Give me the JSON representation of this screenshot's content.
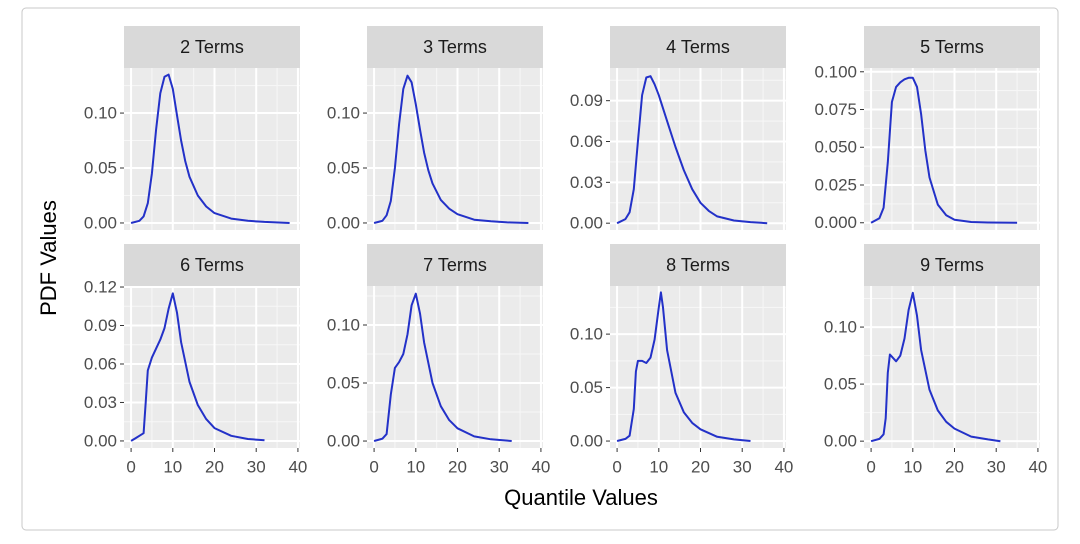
{
  "chart_data": {
    "type": "line",
    "xlabel": "Quantile Values",
    "ylabel": "PDF Values",
    "color": "#2331c8",
    "grid": true,
    "panels": [
      {
        "title": "2 Terms",
        "x": [
          0,
          2,
          3,
          4,
          5,
          6,
          7,
          8,
          9,
          10,
          11,
          12,
          13,
          14,
          16,
          18,
          20,
          24,
          28,
          32,
          38
        ],
        "values": [
          0,
          0.002,
          0.006,
          0.018,
          0.045,
          0.085,
          0.118,
          0.133,
          0.135,
          0.122,
          0.098,
          0.075,
          0.056,
          0.042,
          0.025,
          0.015,
          0.009,
          0.004,
          0.002,
          0.001,
          0
        ],
        "xlim": [
          -1.7,
          40.5
        ],
        "xticks": [
          0,
          10,
          20,
          30,
          40
        ],
        "ylim": [
          -0.0064,
          0.141
        ],
        "yticks": [
          {
            "value": 0,
            "label": "0.00"
          },
          {
            "value": 0.05,
            "label": "0.05"
          },
          {
            "value": 0.1,
            "label": "0.10"
          }
        ]
      },
      {
        "title": "3 Terms",
        "x": [
          0,
          2,
          3,
          4,
          5,
          6,
          7,
          8,
          9,
          10,
          11,
          12,
          13,
          14,
          16,
          18,
          20,
          24,
          28,
          32,
          37
        ],
        "values": [
          0,
          0.002,
          0.007,
          0.02,
          0.05,
          0.09,
          0.122,
          0.134,
          0.128,
          0.108,
          0.085,
          0.064,
          0.048,
          0.036,
          0.021,
          0.013,
          0.008,
          0.003,
          0.0015,
          0.0005,
          0
        ],
        "xlim": [
          -1.7,
          40.5
        ],
        "xticks": [
          0,
          10,
          20,
          30,
          40
        ],
        "ylim": [
          -0.0064,
          0.141
        ],
        "yticks": [
          {
            "value": 0,
            "label": "0.00"
          },
          {
            "value": 0.05,
            "label": "0.05"
          },
          {
            "value": 0.1,
            "label": "0.10"
          }
        ]
      },
      {
        "title": "4 Terms",
        "x": [
          0,
          2,
          3,
          4,
          5,
          6,
          7,
          8,
          9,
          10,
          12,
          14,
          16,
          18,
          20,
          22,
          24,
          28,
          32,
          36
        ],
        "values": [
          0,
          0.003,
          0.008,
          0.025,
          0.06,
          0.094,
          0.107,
          0.108,
          0.102,
          0.094,
          0.075,
          0.056,
          0.039,
          0.025,
          0.015,
          0.009,
          0.005,
          0.002,
          0.0008,
          0
        ],
        "xlim": [
          -1.7,
          40.5
        ],
        "xticks": [
          0,
          10,
          20,
          30,
          40
        ],
        "ylim": [
          -0.005,
          0.114
        ],
        "yticks": [
          {
            "value": 0,
            "label": "0.00"
          },
          {
            "value": 0.03,
            "label": "0.03"
          },
          {
            "value": 0.06,
            "label": "0.06"
          },
          {
            "value": 0.09,
            "label": "0.09"
          }
        ]
      },
      {
        "title": "5 Terms",
        "x": [
          0,
          2,
          3,
          4,
          5,
          6,
          7,
          8,
          9,
          10,
          11,
          12,
          13,
          14,
          16,
          18,
          20,
          24,
          28,
          35
        ],
        "values": [
          0,
          0.003,
          0.01,
          0.04,
          0.08,
          0.09,
          0.093,
          0.095,
          0.096,
          0.096,
          0.09,
          0.072,
          0.048,
          0.03,
          0.012,
          0.005,
          0.002,
          0.0005,
          0.0002,
          0
        ],
        "xlim": [
          -1.7,
          40.5
        ],
        "xticks": [
          0,
          10,
          20,
          30,
          40
        ],
        "ylim": [
          -0.0048,
          0.1025
        ],
        "yticks": [
          {
            "value": 0,
            "label": "0.000"
          },
          {
            "value": 0.025,
            "label": "0.025"
          },
          {
            "value": 0.05,
            "label": "0.050"
          },
          {
            "value": 0.075,
            "label": "0.075"
          },
          {
            "value": 0.1,
            "label": "0.100"
          }
        ]
      },
      {
        "title": "6 Terms",
        "x": [
          0,
          1,
          2,
          3,
          3.5,
          4,
          5,
          6,
          7,
          8,
          9,
          10,
          11,
          12,
          14,
          16,
          18,
          20,
          24,
          28,
          32
        ],
        "values": [
          0,
          0.002,
          0.004,
          0.006,
          0.03,
          0.055,
          0.065,
          0.072,
          0.079,
          0.088,
          0.103,
          0.115,
          0.1,
          0.077,
          0.046,
          0.028,
          0.017,
          0.01,
          0.004,
          0.0015,
          0.0005
        ],
        "xlim": [
          -1.7,
          40.5
        ],
        "xticks": [
          0,
          10,
          20,
          30,
          40
        ],
        "ylim": [
          -0.0055,
          0.1208
        ],
        "yticks": [
          {
            "value": 0,
            "label": "0.00"
          },
          {
            "value": 0.03,
            "label": "0.03"
          },
          {
            "value": 0.06,
            "label": "0.06"
          },
          {
            "value": 0.09,
            "label": "0.09"
          },
          {
            "value": 0.12,
            "label": "0.12"
          }
        ]
      },
      {
        "title": "7 Terms",
        "x": [
          0,
          2,
          3,
          4,
          5,
          6,
          7,
          8,
          9,
          10,
          11,
          12,
          14,
          16,
          18,
          20,
          24,
          28,
          33
        ],
        "values": [
          0,
          0.002,
          0.006,
          0.04,
          0.063,
          0.068,
          0.075,
          0.092,
          0.117,
          0.127,
          0.11,
          0.085,
          0.05,
          0.03,
          0.018,
          0.011,
          0.004,
          0.0015,
          0
        ],
        "xlim": [
          -1.7,
          40.5
        ],
        "xticks": [
          0,
          10,
          20,
          30,
          40
        ],
        "ylim": [
          -0.006,
          0.1336
        ],
        "yticks": [
          {
            "value": 0,
            "label": "0.00"
          },
          {
            "value": 0.05,
            "label": "0.05"
          },
          {
            "value": 0.1,
            "label": "0.10"
          }
        ]
      },
      {
        "title": "8 Terms",
        "x": [
          0,
          2,
          3,
          4,
          4.5,
          5,
          6,
          7,
          8,
          9,
          10,
          10.5,
          11,
          12,
          14,
          16,
          18,
          20,
          24,
          28,
          32
        ],
        "values": [
          0,
          0.002,
          0.005,
          0.03,
          0.065,
          0.075,
          0.075,
          0.073,
          0.078,
          0.095,
          0.125,
          0.139,
          0.125,
          0.085,
          0.045,
          0.027,
          0.017,
          0.011,
          0.004,
          0.0015,
          0
        ],
        "xlim": [
          -1.7,
          40.5
        ],
        "xticks": [
          0,
          10,
          20,
          30,
          40
        ],
        "ylim": [
          -0.0065,
          0.145
        ],
        "yticks": [
          {
            "value": 0,
            "label": "0.00"
          },
          {
            "value": 0.05,
            "label": "0.05"
          },
          {
            "value": 0.1,
            "label": "0.10"
          }
        ]
      },
      {
        "title": "9 Terms",
        "x": [
          0,
          2,
          3,
          3.5,
          4,
          4.5,
          5,
          6,
          7,
          8,
          9,
          10,
          11,
          12,
          14,
          16,
          18,
          20,
          24,
          28,
          31
        ],
        "values": [
          0,
          0.002,
          0.006,
          0.02,
          0.06,
          0.076,
          0.074,
          0.07,
          0.075,
          0.09,
          0.115,
          0.13,
          0.11,
          0.08,
          0.045,
          0.027,
          0.017,
          0.011,
          0.004,
          0.0015,
          0
        ],
        "xlim": [
          -1.7,
          40.5
        ],
        "xticks": [
          0,
          10,
          20,
          30,
          40
        ],
        "ylim": [
          -0.006,
          0.136
        ],
        "yticks": [
          {
            "value": 0,
            "label": "0.00"
          },
          {
            "value": 0.05,
            "label": "0.05"
          },
          {
            "value": 0.1,
            "label": "0.10"
          }
        ]
      }
    ]
  }
}
